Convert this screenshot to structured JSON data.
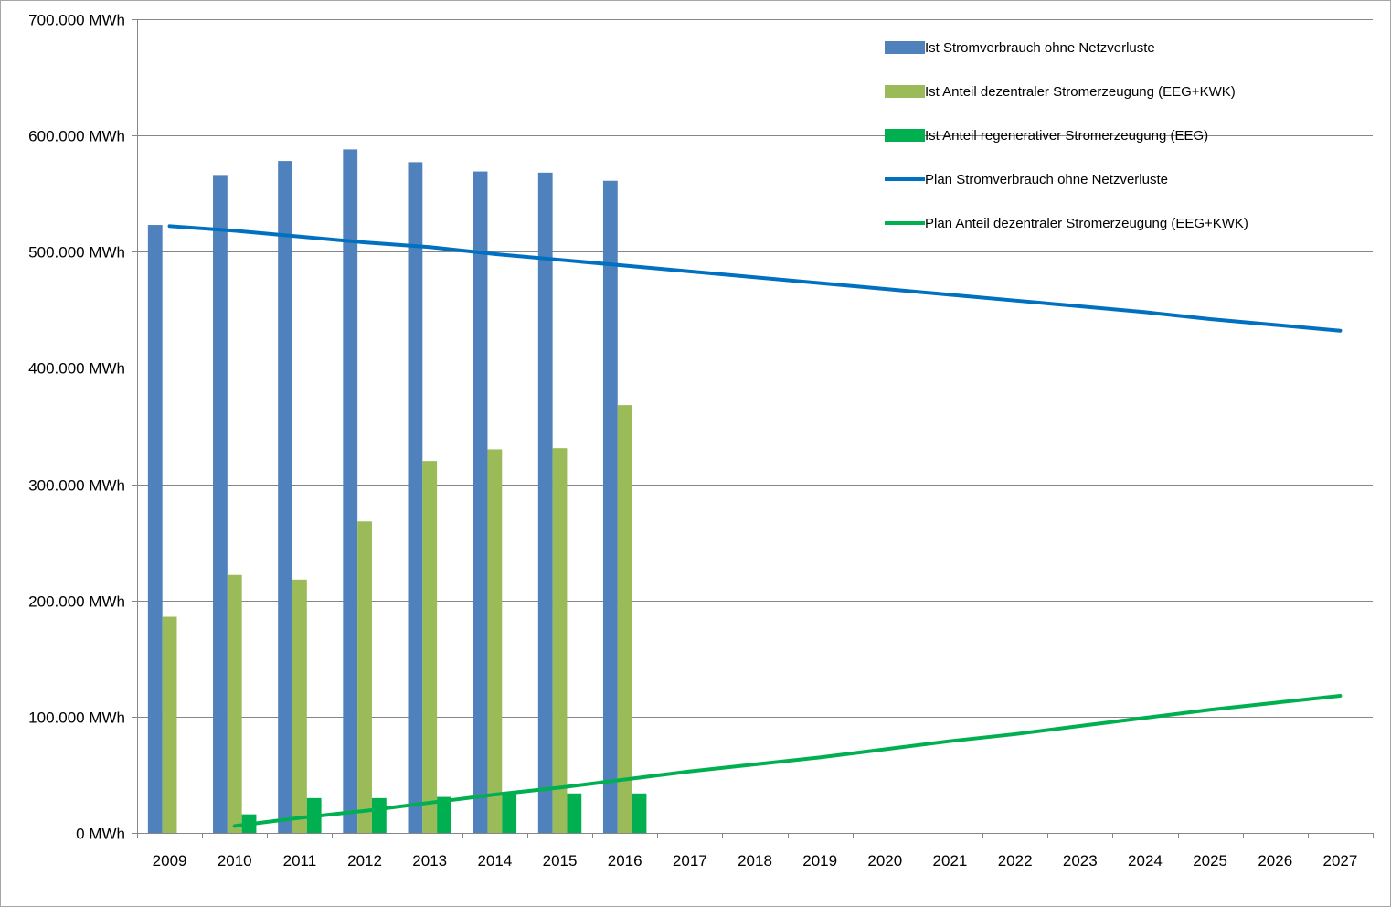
{
  "chart_data": {
    "type": "bar",
    "title": "",
    "xlabel": "",
    "ylabel": "",
    "ylim": [
      0,
      700000
    ],
    "y_tick_values": [
      0,
      100000,
      200000,
      300000,
      400000,
      500000,
      600000,
      700000
    ],
    "y_tick_labels": [
      "0 MWh",
      "100.000 MWh",
      "200.000 MWh",
      "300.000 MWh",
      "400.000 MWh",
      "500.000 MWh",
      "600.000 MWh",
      "700.000 MWh"
    ],
    "grid": true,
    "legend_position": "top-right",
    "categories": [
      "2009",
      "2010",
      "2011",
      "2012",
      "2013",
      "2014",
      "2015",
      "2016",
      "2017",
      "2018",
      "2019",
      "2020",
      "2021",
      "2022",
      "2023",
      "2024",
      "2025",
      "2026",
      "2027"
    ],
    "series": [
      {
        "name": "Ist Stromverbrauch ohne Netzverluste",
        "kind": "bar",
        "color": "#4f81bd",
        "values": [
          523000,
          566000,
          578000,
          588000,
          577000,
          569000,
          568000,
          561000,
          null,
          null,
          null,
          null,
          null,
          null,
          null,
          null,
          null,
          null,
          null
        ]
      },
      {
        "name": "Ist Anteil dezentraler Stromerzeugung (EEG+KWK)",
        "kind": "bar",
        "color": "#9bbb59",
        "values": [
          186000,
          222000,
          218000,
          268000,
          320000,
          330000,
          331000,
          368000,
          null,
          null,
          null,
          null,
          null,
          null,
          null,
          null,
          null,
          null,
          null
        ]
      },
      {
        "name": "Ist Anteil regenerativer Stromerzeugung (EEG)",
        "kind": "bar",
        "color": "#00b050",
        "values": [
          null,
          16000,
          30000,
          30000,
          31000,
          34000,
          34000,
          34000,
          null,
          null,
          null,
          null,
          null,
          null,
          null,
          null,
          null,
          null,
          null
        ]
      },
      {
        "name": "Plan Stromverbrauch ohne Netzverluste",
        "kind": "line",
        "color": "#0070c0",
        "values": [
          522000,
          518000,
          513000,
          508000,
          504000,
          498000,
          493000,
          488000,
          483000,
          478000,
          473000,
          468000,
          463000,
          458000,
          453000,
          448000,
          442000,
          437000,
          432000
        ]
      },
      {
        "name": "Plan Anteil dezentraler Stromerzeugung (EEG+KWK)",
        "kind": "line",
        "color": "#00b050",
        "values": [
          null,
          6000,
          13000,
          19000,
          26000,
          33000,
          39000,
          46000,
          53000,
          59000,
          65000,
          72000,
          79000,
          85000,
          92000,
          99000,
          106000,
          112000,
          118000
        ]
      }
    ]
  }
}
